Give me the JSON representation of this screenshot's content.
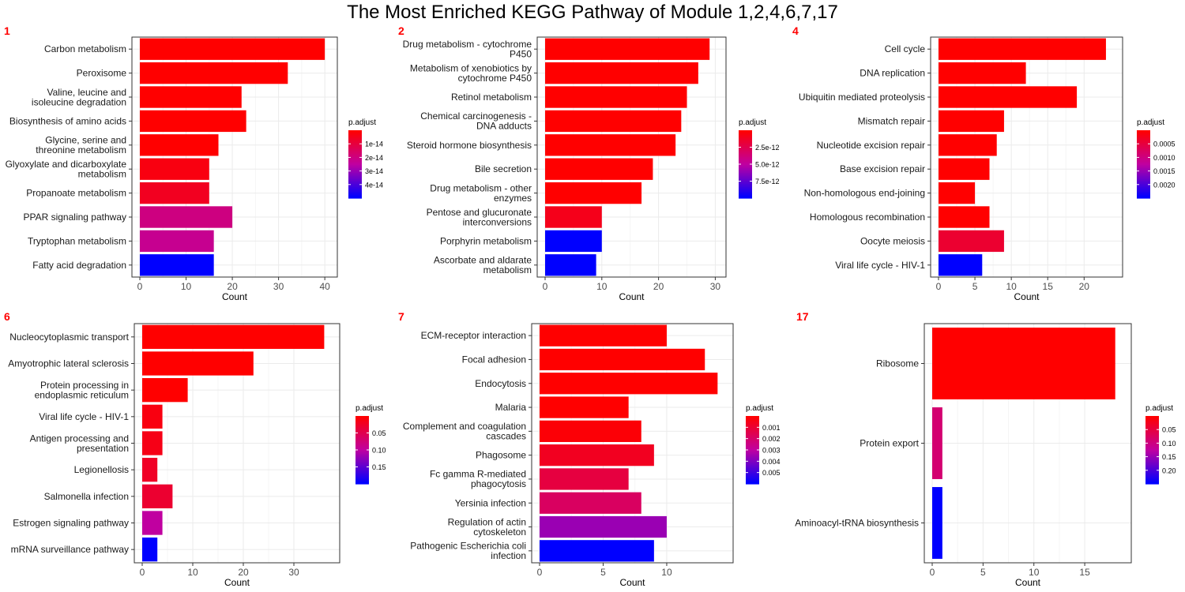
{
  "title": "The Most Enriched KEGG Pathway of Module 1,2,4,6,7,17",
  "colors": {
    "high": "#ff0000",
    "mid": "#c000a0",
    "low": "#0000ff",
    "grid": "#ebebeb",
    "panel_label": "#ff0000"
  },
  "chart_data": [
    {
      "panel_label": "1",
      "type": "bar",
      "orientation": "horizontal",
      "categories": [
        "Carbon metabolism",
        "Peroxisome",
        "Valine, leucine and\nisoleucine degradation",
        "Biosynthesis of amino acids",
        "Glycine, serine and\nthreonine metabolism",
        "Glyoxylate and dicarboxylate\nmetabolism",
        "Propanoate metabolism",
        "PPAR signaling pathway",
        "Tryptophan metabolism",
        "Fatty acid degradation"
      ],
      "values": [
        40,
        32,
        22,
        23,
        17,
        15,
        15,
        20,
        16,
        16
      ],
      "color_fraction": [
        0.0,
        0.0,
        0.0,
        0.0,
        0.0,
        0.05,
        0.1,
        0.4,
        0.45,
        1.0
      ],
      "xlabel": "Count",
      "xlim": [
        0,
        41
      ],
      "xticks": [
        0,
        10,
        20,
        30,
        40
      ],
      "legend": {
        "title": "p.adjust",
        "labels": [
          "1e-14",
          "2e-14",
          "3e-14",
          "4e-14"
        ]
      }
    },
    {
      "panel_label": "2",
      "type": "bar",
      "orientation": "horizontal",
      "categories": [
        "Drug metabolism - cytochrome\nP450",
        "Metabolism of xenobiotics by\ncytochrome P450",
        "Retinol metabolism",
        "Chemical carcinogenesis -\nDNA adducts",
        "Steroid hormone biosynthesis",
        "Bile secretion",
        "Drug metabolism - other\nenzymes",
        "Pentose and glucuronate\ninterconversions",
        "Porphyrin metabolism",
        "Ascorbate and aldarate\nmetabolism"
      ],
      "values": [
        29,
        27,
        25,
        24,
        23,
        19,
        17,
        10,
        10,
        9
      ],
      "color_fraction": [
        0.0,
        0.0,
        0.0,
        0.0,
        0.0,
        0.0,
        0.0,
        0.08,
        1.0,
        1.0
      ],
      "xlabel": "Count",
      "xlim": [
        0,
        30.5
      ],
      "xticks": [
        0,
        10,
        20,
        30
      ],
      "legend": {
        "title": "p.adjust",
        "labels": [
          "2.5e-12",
          "5.0e-12",
          "7.5e-12"
        ]
      }
    },
    {
      "panel_label": "4",
      "type": "bar",
      "orientation": "horizontal",
      "categories": [
        "Cell cycle",
        "DNA replication",
        "Ubiquitin mediated proteolysis",
        "Mismatch repair",
        "Nucleotide excision repair",
        "Base excision repair",
        "Non-homologous end-joining",
        "Homologous recombination",
        "Oocyte meiosis",
        "Viral life cycle - HIV-1"
      ],
      "values": [
        23,
        12,
        19,
        9,
        8,
        7,
        5,
        7,
        9,
        6
      ],
      "color_fraction": [
        0.0,
        0.0,
        0.0,
        0.0,
        0.0,
        0.0,
        0.0,
        0.0,
        0.15,
        1.0
      ],
      "xlabel": "Count",
      "xlim": [
        0,
        24.2
      ],
      "xticks": [
        0,
        5,
        10,
        15,
        20
      ],
      "legend": {
        "title": "p.adjust",
        "labels": [
          "0.0005",
          "0.0010",
          "0.0015",
          "0.0020"
        ]
      }
    },
    {
      "panel_label": "6",
      "type": "bar",
      "orientation": "horizontal",
      "categories": [
        "Nucleocytoplasmic transport",
        "Amyotrophic lateral sclerosis",
        "Protein processing in\nendoplasmic reticulum",
        "Viral life cycle - HIV-1",
        "Antigen processing and\npresentation",
        "Legionellosis",
        "Salmonella infection",
        "Estrogen signaling pathway",
        "mRNA surveillance pathway"
      ],
      "values": [
        36,
        22,
        9,
        4,
        4,
        3,
        6,
        4,
        3
      ],
      "color_fraction": [
        0.0,
        0.0,
        0.0,
        0.05,
        0.07,
        0.12,
        0.15,
        0.5,
        1.0
      ],
      "xlabel": "Count",
      "xlim": [
        0,
        37.5
      ],
      "xticks": [
        0,
        10,
        20,
        30
      ],
      "legend": {
        "title": "p.adjust",
        "labels": [
          "0.05",
          "0.10",
          "0.15"
        ]
      }
    },
    {
      "panel_label": "7",
      "type": "bar",
      "orientation": "horizontal",
      "categories": [
        "ECM-receptor interaction",
        "Focal adhesion",
        "Endocytosis",
        "Malaria",
        "Complement and coagulation\ncascades",
        "Phagosome",
        "Fc gamma R-mediated\nphagocytosis",
        "Yersinia infection",
        "Regulation of actin\ncytoskeleton",
        "Pathogenic Escherichia coli\ninfection"
      ],
      "values": [
        10,
        13,
        14,
        7,
        8,
        9,
        7,
        8,
        10,
        9
      ],
      "color_fraction": [
        0.0,
        0.0,
        0.0,
        0.0,
        0.02,
        0.1,
        0.2,
        0.3,
        0.6,
        1.0
      ],
      "xlabel": "Count",
      "xlim": [
        0,
        14.6
      ],
      "xticks": [
        0,
        5,
        10
      ],
      "legend": {
        "title": "p.adjust",
        "labels": [
          "0.001",
          "0.002",
          "0.003",
          "0.004",
          "0.005"
        ]
      }
    },
    {
      "panel_label": "17",
      "type": "bar",
      "orientation": "horizontal",
      "categories": [
        "Ribosome",
        "Protein export",
        "Aminoacyl-tRNA biosynthesis"
      ],
      "values": [
        18,
        1,
        1
      ],
      "color_fraction": [
        0.0,
        0.35,
        1.0
      ],
      "xlabel": "Count",
      "xlim": [
        0,
        18.8
      ],
      "xticks": [
        0,
        5,
        10,
        15
      ],
      "legend": {
        "title": "p.adjust",
        "labels": [
          "0.05",
          "0.10",
          "0.15",
          "0.20"
        ]
      }
    }
  ]
}
